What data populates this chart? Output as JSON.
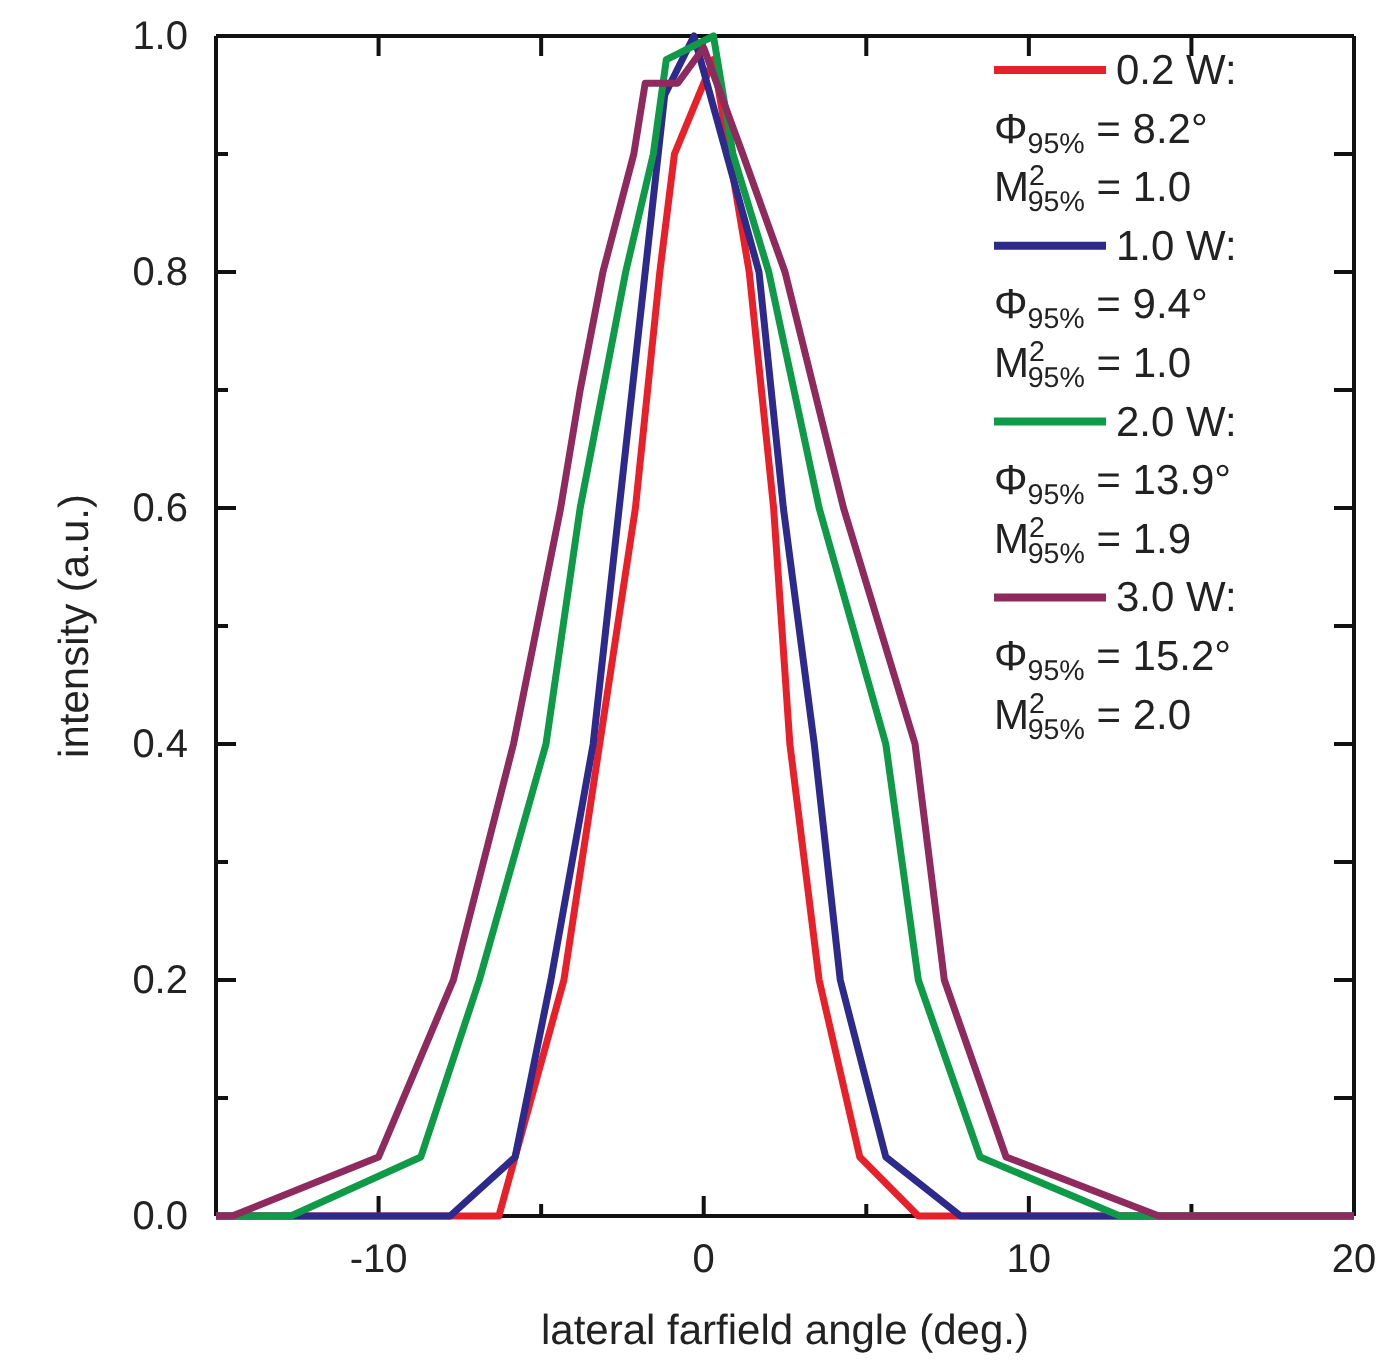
{
  "chart_data": {
    "type": "line",
    "xlabel": "lateral farfield angle (deg.)",
    "ylabel": "intensity (a.u.)",
    "xlim": [
      -15,
      20
    ],
    "xticks": [
      {
        "value": -15,
        "label": null
      },
      -10,
      {
        "value": -5,
        "label": null
      },
      0,
      {
        "value": 5,
        "label": null
      },
      10,
      {
        "value": 15,
        "label": null
      },
      20
    ],
    "ylim": [
      0,
      1.0
    ],
    "yticks": [
      {
        "value": 0,
        "label": "0.0"
      },
      {
        "value": 0.1,
        "label": null
      },
      0.2,
      {
        "value": 0.3,
        "label": null
      },
      0.4,
      {
        "value": 0.5,
        "label": null
      },
      0.6,
      {
        "value": 0.7,
        "label": null
      },
      0.8,
      {
        "value": 0.9,
        "label": null
      },
      {
        "value": 1.0,
        "label": "1.0"
      }
    ],
    "grid": false,
    "legend": "top right",
    "marker": "none",
    "line_style": "solid",
    "series": [
      {
        "name": "0.2 W:",
        "color": "#e8202a",
        "x": [
          -15,
          -6.3,
          -4.3,
          -3.2,
          -2.1,
          -1.35,
          -0.9,
          0.3,
          1.4,
          2.15,
          2.65,
          3.55,
          4.8,
          6.6,
          20
        ],
        "values": [
          0,
          0,
          0.2,
          0.4,
          0.6,
          0.8,
          0.9,
          0.98,
          0.8,
          0.6,
          0.4,
          0.2,
          0.05,
          0,
          0
        ]
      },
      {
        "name": "1.0 W:",
        "color": "#2e2a8c",
        "x": [
          -15,
          -7.8,
          -5.8,
          -4.7,
          -3.4,
          -2.6,
          -1.8,
          -1.2,
          -0.3,
          1.7,
          2.45,
          3.4,
          4.2,
          5.6,
          7.9,
          20
        ],
        "values": [
          0,
          0,
          0.05,
          0.2,
          0.4,
          0.6,
          0.8,
          0.95,
          1.0,
          0.8,
          0.6,
          0.4,
          0.2,
          0.05,
          0,
          0
        ]
      },
      {
        "name": "2.0 W:",
        "color": "#0f9a48",
        "x": [
          -15,
          -12.7,
          -8.7,
          -6.9,
          -4.85,
          -3.8,
          -2.4,
          -1.55,
          -1.15,
          0.3,
          0.9,
          2.0,
          3.55,
          5.6,
          6.6,
          8.5,
          12.8,
          20
        ],
        "values": [
          0,
          0,
          0.05,
          0.2,
          0.4,
          0.6,
          0.8,
          0.9,
          0.98,
          1.0,
          0.9,
          0.8,
          0.6,
          0.4,
          0.2,
          0.05,
          0,
          0
        ]
      },
      {
        "name": "3.0 W:",
        "color": "#8e2a5e",
        "x": [
          -15,
          -14.5,
          -10,
          -7.7,
          -5.85,
          -4.4,
          -3.8,
          -3.1,
          -2.15,
          -1.8,
          -0.8,
          0,
          1.2,
          2.5,
          3.4,
          4.3,
          6.5,
          7.4,
          9.3,
          14,
          20
        ],
        "values": [
          0,
          0,
          0.05,
          0.2,
          0.4,
          0.6,
          0.7,
          0.8,
          0.9,
          0.96,
          0.96,
          0.99,
          0.9,
          0.8,
          0.7,
          0.6,
          0.4,
          0.2,
          0.05,
          0,
          0
        ]
      }
    ],
    "annotations": [
      "Φ$_{95%}$ = 8.2°",
      "M$^{2}$$_{95%}$ = 1.0",
      "Φ$_{95%}$ = 9.4°",
      "M$^{2}$$_{95%}$ = 1.0",
      "Φ$_{95%}$ = 13.9°",
      "M$^{2}$$_{95%}$ = 1.9",
      "Φ$_{95%}$ = 15.2°",
      "M$^{2}$$_{95%}$ = 2.0"
    ]
  }
}
